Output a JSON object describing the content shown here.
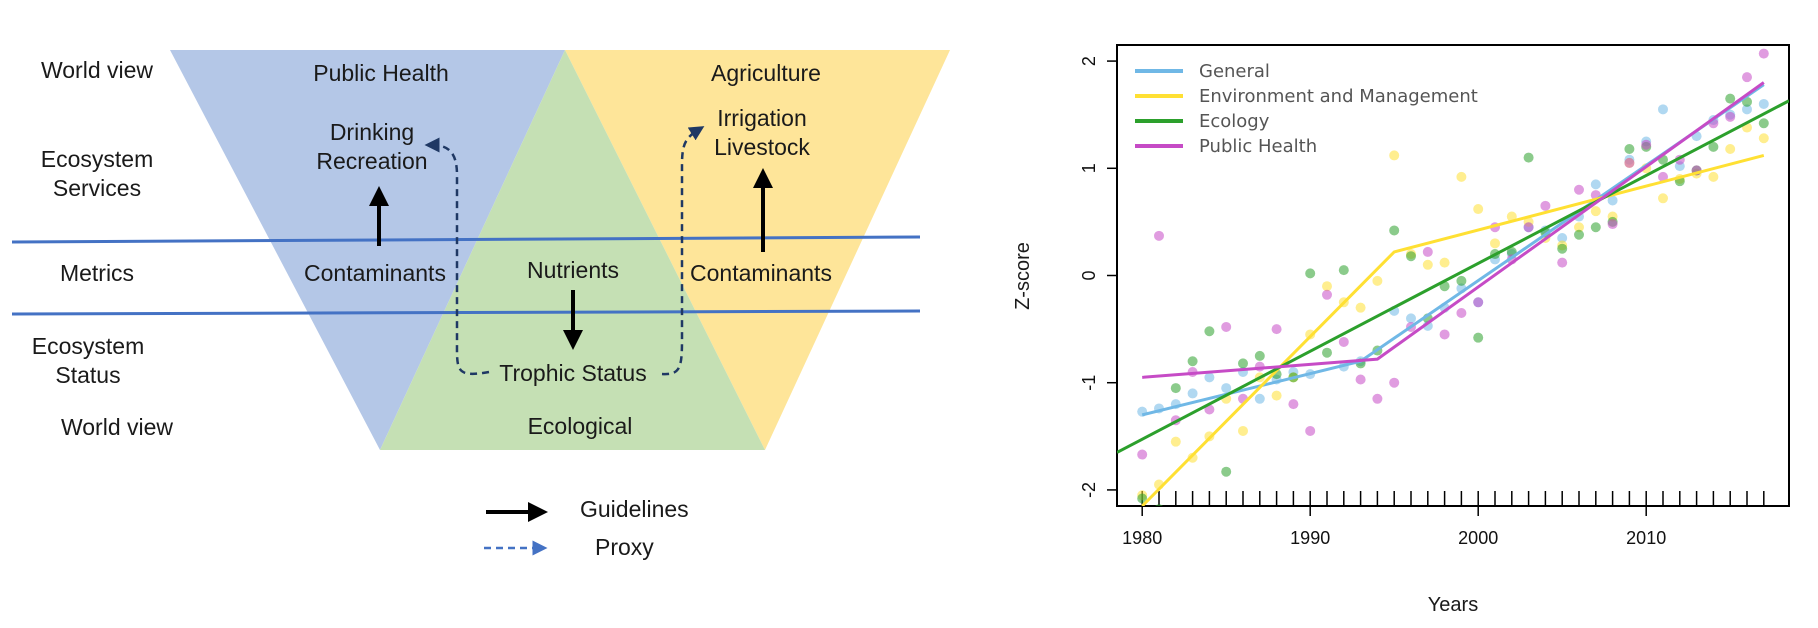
{
  "diagram": {
    "row_labels": {
      "world_view_top": "World view",
      "ecosystem_services": [
        "Ecosystem",
        "Services"
      ],
      "metrics": "Metrics",
      "ecosystem_status": [
        "Ecosystem",
        "Status"
      ],
      "world_view_bottom": "World view"
    },
    "public_health": {
      "title": "Public Health",
      "services": [
        "Drinking",
        "Recreation"
      ],
      "metric": "Contaminants",
      "color": "#b4c7e7"
    },
    "agriculture": {
      "title": "Agriculture",
      "services": [
        "Irrigation",
        "Livestock"
      ],
      "metric": "Contaminants",
      "color": "#fee599"
    },
    "ecological": {
      "title": "Ecological",
      "metric": "Nutrients",
      "status": "Trophic Status",
      "color": "#c5e0b4"
    },
    "legend": {
      "guidelines": "Guidelines",
      "proxy": "Proxy"
    },
    "line_color": "#4472c4",
    "proxy_color": "#1f3864"
  },
  "chart_data": {
    "type": "scatter",
    "xlabel": "Years",
    "ylabel": "Z-score",
    "xlim": [
      1978.5,
      2018.5
    ],
    "ylim": [
      -2.15,
      2.15
    ],
    "xticks": [
      1980,
      1990,
      2000,
      2010
    ],
    "yticks": [
      -2,
      -1,
      0,
      1,
      2
    ],
    "minor_xticks_every": 1,
    "legend_position": "top-left",
    "series": [
      {
        "name": "General",
        "color": "#70b8e6",
        "points": [
          [
            1980,
            -1.27
          ],
          [
            1981,
            -1.24
          ],
          [
            1982,
            -1.2
          ],
          [
            1983,
            -1.1
          ],
          [
            1984,
            -0.95
          ],
          [
            1985,
            -1.05
          ],
          [
            1986,
            -0.9
          ],
          [
            1987,
            -1.15
          ],
          [
            1988,
            -0.97
          ],
          [
            1989,
            -0.9
          ],
          [
            1990,
            -0.92
          ],
          [
            1992,
            -0.85
          ],
          [
            1993,
            -0.8
          ],
          [
            1995,
            -0.33
          ],
          [
            1996,
            -0.4
          ],
          [
            1997,
            -0.47
          ],
          [
            1998,
            -0.3
          ],
          [
            1999,
            -0.12
          ],
          [
            2000,
            -0.25
          ],
          [
            2001,
            0.15
          ],
          [
            2002,
            0.2
          ],
          [
            2003,
            0.45
          ],
          [
            2004,
            0.42
          ],
          [
            2005,
            0.35
          ],
          [
            2006,
            0.55
          ],
          [
            2007,
            0.85
          ],
          [
            2008,
            0.7
          ],
          [
            2009,
            1.08
          ],
          [
            2010,
            1.25
          ],
          [
            2011,
            1.55
          ],
          [
            2012,
            1.02
          ],
          [
            2013,
            1.3
          ],
          [
            2014,
            1.45
          ],
          [
            2015,
            1.5
          ],
          [
            2016,
            1.55
          ],
          [
            2017,
            1.6
          ]
        ],
        "trend": [
          [
            1980,
            -1.3
          ],
          [
            1993,
            -0.8
          ],
          [
            2017,
            1.78
          ]
        ]
      },
      {
        "name": "Environment and Management",
        "color": "#ffe033",
        "points": [
          [
            1980,
            -2.05
          ],
          [
            1981,
            -1.95
          ],
          [
            1982,
            -1.55
          ],
          [
            1983,
            -1.7
          ],
          [
            1984,
            -1.5
          ],
          [
            1985,
            -1.15
          ],
          [
            1986,
            -1.45
          ],
          [
            1987,
            -0.95
          ],
          [
            1988,
            -1.12
          ],
          [
            1989,
            -0.95
          ],
          [
            1990,
            -0.55
          ],
          [
            1991,
            -0.1
          ],
          [
            1992,
            -0.25
          ],
          [
            1993,
            -0.3
          ],
          [
            1994,
            -0.05
          ],
          [
            1995,
            1.12
          ],
          [
            1996,
            0.2
          ],
          [
            1997,
            0.1
          ],
          [
            1998,
            0.12
          ],
          [
            1999,
            0.92
          ],
          [
            2000,
            0.62
          ],
          [
            2001,
            0.3
          ],
          [
            2002,
            0.55
          ],
          [
            2003,
            0.5
          ],
          [
            2004,
            0.35
          ],
          [
            2005,
            0.28
          ],
          [
            2006,
            0.45
          ],
          [
            2007,
            0.6
          ],
          [
            2008,
            0.55
          ],
          [
            2009,
            1.05
          ],
          [
            2010,
            1.0
          ],
          [
            2011,
            0.72
          ],
          [
            2012,
            0.9
          ],
          [
            2013,
            0.95
          ],
          [
            2014,
            0.92
          ],
          [
            2015,
            1.18
          ],
          [
            2016,
            1.38
          ],
          [
            2017,
            1.28
          ]
        ],
        "trend": [
          [
            1980,
            -2.15
          ],
          [
            1995,
            0.22
          ],
          [
            2017,
            1.12
          ]
        ]
      },
      {
        "name": "Ecology",
        "color": "#2ca02c",
        "points": [
          [
            1980,
            -2.08
          ],
          [
            1981,
            -2.18
          ],
          [
            1982,
            -1.05
          ],
          [
            1983,
            -0.8
          ],
          [
            1984,
            -0.52
          ],
          [
            1985,
            -1.83
          ],
          [
            1986,
            -0.82
          ],
          [
            1987,
            -0.75
          ],
          [
            1988,
            -0.92
          ],
          [
            1989,
            -0.95
          ],
          [
            1990,
            0.02
          ],
          [
            1991,
            -0.72
          ],
          [
            1992,
            0.05
          ],
          [
            1993,
            -0.82
          ],
          [
            1994,
            -0.7
          ],
          [
            1995,
            0.42
          ],
          [
            1996,
            0.18
          ],
          [
            1997,
            -0.4
          ],
          [
            1998,
            -0.1
          ],
          [
            1999,
            -0.05
          ],
          [
            2000,
            -0.58
          ],
          [
            2001,
            0.2
          ],
          [
            2002,
            0.22
          ],
          [
            2003,
            1.1
          ],
          [
            2004,
            0.4
          ],
          [
            2005,
            0.25
          ],
          [
            2006,
            0.38
          ],
          [
            2007,
            0.45
          ],
          [
            2008,
            0.5
          ],
          [
            2009,
            1.18
          ],
          [
            2010,
            1.2
          ],
          [
            2011,
            1.08
          ],
          [
            2012,
            0.88
          ],
          [
            2013,
            0.98
          ],
          [
            2014,
            1.2
          ],
          [
            2015,
            1.65
          ],
          [
            2016,
            1.62
          ],
          [
            2017,
            1.42
          ]
        ],
        "trend": [
          [
            1978.5,
            -1.65
          ],
          [
            2018.5,
            1.63
          ]
        ]
      },
      {
        "name": "Public Health",
        "color": "#c64bc6",
        "points": [
          [
            1980,
            -1.67
          ],
          [
            1981,
            0.37
          ],
          [
            1982,
            -1.35
          ],
          [
            1983,
            -0.9
          ],
          [
            1984,
            -1.25
          ],
          [
            1985,
            -0.48
          ],
          [
            1986,
            -1.15
          ],
          [
            1987,
            -0.85
          ],
          [
            1988,
            -0.5
          ],
          [
            1989,
            -1.2
          ],
          [
            1990,
            -1.45
          ],
          [
            1991,
            -0.18
          ],
          [
            1992,
            -0.62
          ],
          [
            1993,
            -0.97
          ],
          [
            1994,
            -1.15
          ],
          [
            1995,
            -1.0
          ],
          [
            1996,
            -0.48
          ],
          [
            1997,
            0.22
          ],
          [
            1998,
            -0.55
          ],
          [
            1999,
            -0.35
          ],
          [
            2000,
            -0.25
          ],
          [
            2001,
            0.45
          ],
          [
            2002,
            0.15
          ],
          [
            2003,
            0.45
          ],
          [
            2004,
            0.65
          ],
          [
            2005,
            0.12
          ],
          [
            2006,
            0.8
          ],
          [
            2007,
            0.75
          ],
          [
            2008,
            0.48
          ],
          [
            2009,
            1.05
          ],
          [
            2010,
            1.22
          ],
          [
            2011,
            0.92
          ],
          [
            2012,
            1.08
          ],
          [
            2013,
            0.98
          ],
          [
            2014,
            1.42
          ],
          [
            2015,
            1.48
          ],
          [
            2016,
            1.85
          ],
          [
            2017,
            2.07
          ]
        ],
        "trend": [
          [
            1980,
            -0.95
          ],
          [
            1994,
            -0.78
          ],
          [
            2017,
            1.8
          ]
        ]
      }
    ]
  }
}
